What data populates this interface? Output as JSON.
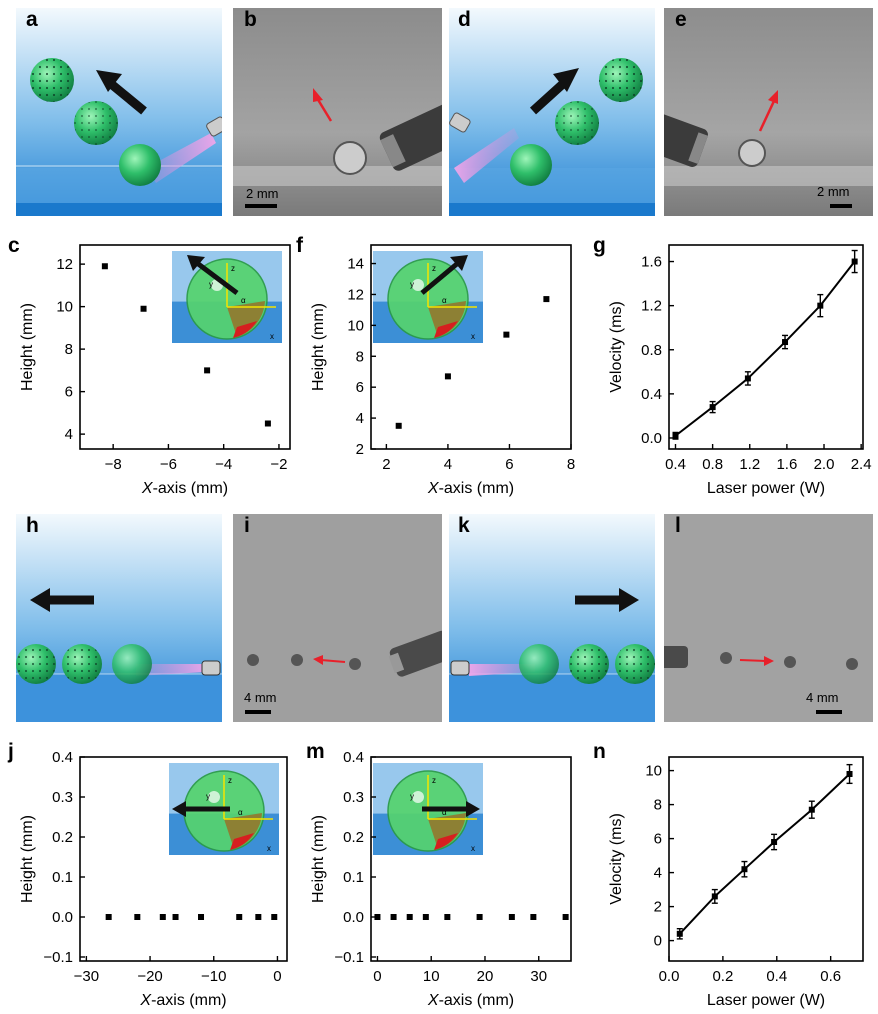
{
  "panel_labels": {
    "a": "a",
    "b": "b",
    "c": "c",
    "d": "d",
    "e": "e",
    "f": "f",
    "g": "g",
    "h": "h",
    "i": "i",
    "j": "j",
    "k": "k",
    "l": "l",
    "m": "m",
    "n": "n"
  },
  "scalebars": {
    "b": "2 mm",
    "e": "2 mm",
    "i": "4 mm",
    "l": "4 mm"
  },
  "colors": {
    "sphere": "#2fbf6a",
    "laser": "#e08ad8",
    "sky_top": "#dff0fb",
    "sky_bottom": "#1f86d6",
    "arrow_red": "#e8202a"
  },
  "chart_data": [
    {
      "id": "c",
      "type": "scatter",
      "x": [
        -8.3,
        -6.9,
        -4.6,
        -2.4
      ],
      "y": [
        11.9,
        9.9,
        7.0,
        4.5
      ],
      "xlabel_italic": "X",
      "xlabel_rest": "-axis (mm)",
      "ylabel": "Height (mm)",
      "xlim": [
        -9.2,
        -1.6
      ],
      "ylim": [
        3.3,
        12.9
      ],
      "xticks": [
        -8,
        -6,
        -4,
        -2
      ],
      "yticks": [
        4,
        6,
        8,
        10,
        12
      ],
      "xtick_labels": [
        "−8",
        "−6",
        "−4",
        "−2"
      ],
      "ytick_labels": [
        "4",
        "6",
        "8",
        "10",
        "12"
      ],
      "inset_labels": [
        "z",
        "y",
        "α",
        "x"
      ]
    },
    {
      "id": "f",
      "type": "scatter",
      "x": [
        2.4,
        4.0,
        5.9,
        7.2
      ],
      "y": [
        3.5,
        6.7,
        9.4,
        11.7
      ],
      "xlabel_italic": "X",
      "xlabel_rest": "-axis (mm)",
      "ylabel": "Height (mm)",
      "xlim": [
        1.5,
        8.0
      ],
      "ylim": [
        2.0,
        15.2
      ],
      "xticks": [
        2,
        4,
        6,
        8
      ],
      "yticks": [
        2,
        4,
        6,
        8,
        10,
        12,
        14
      ],
      "xtick_labels": [
        "2",
        "4",
        "6",
        "8"
      ],
      "ytick_labels": [
        "2",
        "4",
        "6",
        "8",
        "10",
        "12",
        "14"
      ],
      "inset_labels": [
        "z",
        "y",
        "α",
        "x"
      ]
    },
    {
      "id": "g",
      "type": "line",
      "x": [
        0.4,
        0.8,
        1.18,
        1.58,
        1.96,
        2.33
      ],
      "y": [
        0.02,
        0.28,
        0.54,
        0.87,
        1.2,
        1.6
      ],
      "err": [
        0.03,
        0.05,
        0.06,
        0.06,
        0.1,
        0.1
      ],
      "xlabel": "Laser power (W)",
      "ylabel": "Velocity (ms)",
      "xlim": [
        0.33,
        2.42
      ],
      "ylim": [
        -0.1,
        1.75
      ],
      "xticks": [
        0.4,
        0.8,
        1.2,
        1.6,
        2.0,
        2.4
      ],
      "yticks": [
        0.0,
        0.4,
        0.8,
        1.2,
        1.6
      ],
      "xtick_labels": [
        "0.4",
        "0.8",
        "1.2",
        "1.6",
        "2.0",
        "2.4"
      ],
      "ytick_labels": [
        "0.0",
        "0.4",
        "0.8",
        "1.2",
        "1.6"
      ]
    },
    {
      "id": "j",
      "type": "scatter",
      "x": [
        -26.5,
        -22,
        -18,
        -16,
        -12,
        -6,
        -3,
        -0.5
      ],
      "y": [
        0,
        0,
        0,
        0,
        0,
        0,
        0,
        0
      ],
      "xlabel_italic": "X",
      "xlabel_rest": "-axis (mm)",
      "ylabel": "Height (mm)",
      "xlim": [
        -31,
        1.5
      ],
      "ylim": [
        -0.11,
        0.4
      ],
      "xticks": [
        -30,
        -20,
        -10,
        0
      ],
      "yticks": [
        -0.1,
        0.0,
        0.1,
        0.2,
        0.3,
        0.4
      ],
      "xtick_labels": [
        "−30",
        "−20",
        "−10",
        "0"
      ],
      "ytick_labels": [
        "−0.1",
        "0.0",
        "0.1",
        "0.2",
        "0.3",
        "0.4"
      ],
      "inset_labels": [
        "z",
        "y",
        "α",
        "x"
      ]
    },
    {
      "id": "m",
      "type": "scatter",
      "x": [
        0,
        3,
        6,
        9,
        13,
        19,
        25,
        29,
        35
      ],
      "y": [
        0,
        0,
        0,
        0,
        0,
        0,
        0,
        0,
        0
      ],
      "xlabel_italic": "X",
      "xlabel_rest": "-axis (mm)",
      "ylabel": "Height (mm)",
      "xlim": [
        -1.2,
        36
      ],
      "ylim": [
        -0.11,
        0.4
      ],
      "xticks": [
        0,
        10,
        20,
        30
      ],
      "yticks": [
        -0.1,
        0.0,
        0.1,
        0.2,
        0.3,
        0.4
      ],
      "xtick_labels": [
        "0",
        "10",
        "20",
        "30"
      ],
      "ytick_labels": [
        "−0.1",
        "0.0",
        "0.1",
        "0.2",
        "0.3",
        "0.4"
      ],
      "inset_labels": [
        "z",
        "y",
        "α",
        "x"
      ]
    },
    {
      "id": "n",
      "type": "line",
      "x": [
        0.04,
        0.17,
        0.28,
        0.39,
        0.53,
        0.67
      ],
      "y": [
        0.4,
        2.6,
        4.2,
        5.8,
        7.7,
        9.8
      ],
      "err": [
        0.3,
        0.4,
        0.45,
        0.45,
        0.5,
        0.55
      ],
      "xlabel": "Laser power (W)",
      "ylabel": "Velocity (ms)",
      "xlim": [
        0,
        0.72
      ],
      "ylim": [
        -1.2,
        10.8
      ],
      "xticks": [
        0.0,
        0.2,
        0.4,
        0.6
      ],
      "yticks": [
        0,
        2,
        4,
        6,
        8,
        10
      ],
      "xtick_labels": [
        "0.0",
        "0.2",
        "0.4",
        "0.6"
      ],
      "ytick_labels": [
        "0",
        "2",
        "4",
        "6",
        "8",
        "10"
      ]
    }
  ]
}
